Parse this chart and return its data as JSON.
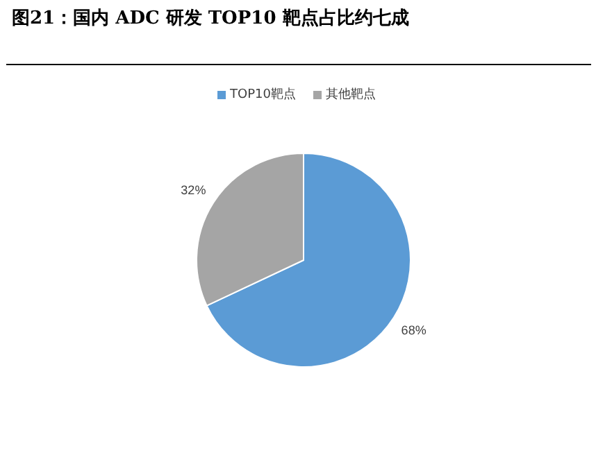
{
  "chart_data": {
    "type": "pie",
    "title": "图21：国内 ADC 研发 TOP10 靶点占比约七成",
    "categories": [
      "TOP10靶点",
      "其他靶点"
    ],
    "values": [
      68,
      32
    ],
    "colors": [
      "#5b9bd5",
      "#a5a5a5"
    ],
    "value_labels": [
      "68%",
      "32%"
    ],
    "legend": "top"
  }
}
